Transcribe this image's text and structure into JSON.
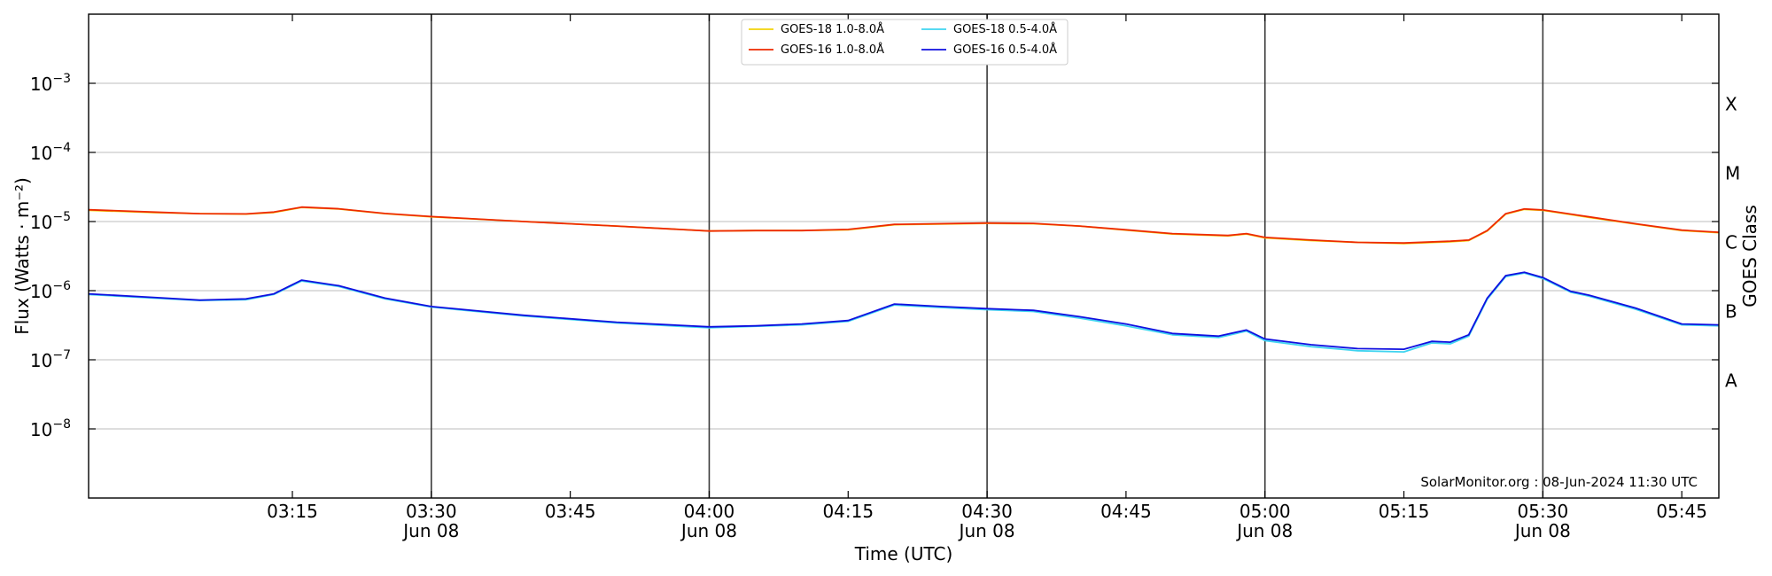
{
  "chart_data": {
    "type": "line",
    "xlabel": "Time (UTC)",
    "ylabel": "Flux (Watts · m⁻²)",
    "y2label": "GOES Class",
    "yscale": "log",
    "ylim": [
      1e-09,
      0.01
    ],
    "xlim": [
      "02:53",
      "05:49"
    ],
    "grid": "horizontal at decades; vertical lines every 30 min",
    "legend_position": "top-center",
    "annotation": "SolarMonitor.org : 08-Jun-2024 11:30 UTC",
    "x_ticks": [
      {
        "time": "03:15",
        "label": "03:15",
        "sublabel": ""
      },
      {
        "time": "03:30",
        "label": "03:30",
        "sublabel": "Jun 08"
      },
      {
        "time": "03:45",
        "label": "03:45",
        "sublabel": ""
      },
      {
        "time": "04:00",
        "label": "04:00",
        "sublabel": "Jun 08"
      },
      {
        "time": "04:15",
        "label": "04:15",
        "sublabel": ""
      },
      {
        "time": "04:30",
        "label": "04:30",
        "sublabel": "Jun 08"
      },
      {
        "time": "04:45",
        "label": "04:45",
        "sublabel": ""
      },
      {
        "time": "05:00",
        "label": "05:00",
        "sublabel": "Jun 08"
      },
      {
        "time": "05:15",
        "label": "05:15",
        "sublabel": ""
      },
      {
        "time": "05:30",
        "label": "05:30",
        "sublabel": "Jun 08"
      },
      {
        "time": "05:45",
        "label": "05:45",
        "sublabel": ""
      }
    ],
    "y_ticks": [
      {
        "value": 1e-08,
        "base": "10",
        "exp": "−8"
      },
      {
        "value": 1e-07,
        "base": "10",
        "exp": "−7"
      },
      {
        "value": 1e-06,
        "base": "10",
        "exp": "−6"
      },
      {
        "value": 1e-05,
        "base": "10",
        "exp": "−5"
      },
      {
        "value": 0.0001,
        "base": "10",
        "exp": "−4"
      },
      {
        "value": 0.001,
        "base": "10",
        "exp": "−3"
      }
    ],
    "goes_classes": [
      {
        "label": "A",
        "value": 5e-08
      },
      {
        "label": "B",
        "value": 5e-07
      },
      {
        "label": "C",
        "value": 5e-06
      },
      {
        "label": "M",
        "value": 5e-05
      },
      {
        "label": "X",
        "value": 0.0005
      }
    ],
    "legend_entries": [
      {
        "name": "GOES-18 1.0-8.0Å",
        "color": "#f2d20a"
      },
      {
        "name": "GOES-16 1.0-8.0Å",
        "color": "#ee2a00"
      },
      {
        "name": "GOES-18 0.5-4.0Å",
        "color": "#3fd4f0"
      },
      {
        "name": "GOES-16 0.5-4.0Å",
        "color": "#1010e0"
      }
    ],
    "series": [
      {
        "name": "GOES-18 1.0-8.0Å",
        "color": "#f2d20a",
        "points": [
          [
            "02:53",
            1.45e-05
          ],
          [
            "03:00",
            1.35e-05
          ],
          [
            "03:05",
            1.3e-05
          ],
          [
            "03:10",
            1.28e-05
          ],
          [
            "03:13",
            1.35e-05
          ],
          [
            "03:16",
            1.6e-05
          ],
          [
            "03:20",
            1.52e-05
          ],
          [
            "03:25",
            1.3e-05
          ],
          [
            "03:30",
            1.17e-05
          ],
          [
            "03:40",
            1e-05
          ],
          [
            "03:50",
            8.6e-06
          ],
          [
            "04:00",
            7.3e-06
          ],
          [
            "04:05",
            7.4e-06
          ],
          [
            "04:10",
            7.4e-06
          ],
          [
            "04:15",
            7.6e-06
          ],
          [
            "04:20",
            9e-06
          ],
          [
            "04:30",
            9.4e-06
          ],
          [
            "04:35",
            9.3e-06
          ],
          [
            "04:40",
            8.6e-06
          ],
          [
            "04:45",
            7.5e-06
          ],
          [
            "04:50",
            6.6e-06
          ],
          [
            "04:56",
            6.2e-06
          ],
          [
            "04:58",
            6.6e-06
          ],
          [
            "05:00",
            5.8e-06
          ],
          [
            "05:05",
            5.3e-06
          ],
          [
            "05:10",
            5e-06
          ],
          [
            "05:15",
            4.8e-06
          ],
          [
            "05:20",
            5.1e-06
          ],
          [
            "05:22",
            5.3e-06
          ],
          [
            "05:24",
            7.3e-06
          ],
          [
            "05:26",
            1.28e-05
          ],
          [
            "05:28",
            1.5e-05
          ],
          [
            "05:30",
            1.45e-05
          ],
          [
            "05:35",
            1.15e-05
          ],
          [
            "05:40",
            9.2e-06
          ],
          [
            "05:45",
            7.4e-06
          ],
          [
            "05:49",
            6.9e-06
          ]
        ]
      },
      {
        "name": "GOES-16 1.0-8.0Å",
        "color": "#ee2a00",
        "points": [
          [
            "02:53",
            1.48e-05
          ],
          [
            "03:00",
            1.37e-05
          ],
          [
            "03:05",
            1.3e-05
          ],
          [
            "03:10",
            1.29e-05
          ],
          [
            "03:13",
            1.37e-05
          ],
          [
            "03:16",
            1.62e-05
          ],
          [
            "03:20",
            1.53e-05
          ],
          [
            "03:25",
            1.31e-05
          ],
          [
            "03:30",
            1.18e-05
          ],
          [
            "03:40",
            1e-05
          ],
          [
            "03:50",
            8.6e-06
          ],
          [
            "04:00",
            7.3e-06
          ],
          [
            "04:05",
            7.4e-06
          ],
          [
            "04:10",
            7.4e-06
          ],
          [
            "04:15",
            7.7e-06
          ],
          [
            "04:20",
            9.1e-06
          ],
          [
            "04:30",
            9.5e-06
          ],
          [
            "04:35",
            9.4e-06
          ],
          [
            "04:40",
            8.6e-06
          ],
          [
            "04:45",
            7.6e-06
          ],
          [
            "04:50",
            6.7e-06
          ],
          [
            "04:56",
            6.3e-06
          ],
          [
            "04:58",
            6.7e-06
          ],
          [
            "05:00",
            5.9e-06
          ],
          [
            "05:05",
            5.4e-06
          ],
          [
            "05:10",
            5e-06
          ],
          [
            "05:15",
            4.9e-06
          ],
          [
            "05:20",
            5.2e-06
          ],
          [
            "05:22",
            5.4e-06
          ],
          [
            "05:24",
            7.4e-06
          ],
          [
            "05:26",
            1.3e-05
          ],
          [
            "05:28",
            1.52e-05
          ],
          [
            "05:30",
            1.47e-05
          ],
          [
            "05:35",
            1.17e-05
          ],
          [
            "05:40",
            9.3e-06
          ],
          [
            "05:45",
            7.5e-06
          ],
          [
            "05:49",
            7e-06
          ]
        ]
      },
      {
        "name": "GOES-18 0.5-4.0Å",
        "color": "#3fd4f0",
        "points": [
          [
            "02:53",
            8.8e-07
          ],
          [
            "03:00",
            7.8e-07
          ],
          [
            "03:05",
            7.2e-07
          ],
          [
            "03:10",
            7.4e-07
          ],
          [
            "03:13",
            8.8e-07
          ],
          [
            "03:16",
            1.38e-06
          ],
          [
            "03:20",
            1.15e-06
          ],
          [
            "03:25",
            7.6e-07
          ],
          [
            "03:30",
            5.8e-07
          ],
          [
            "03:40",
            4.3e-07
          ],
          [
            "03:50",
            3.4e-07
          ],
          [
            "04:00",
            2.9e-07
          ],
          [
            "04:05",
            3.05e-07
          ],
          [
            "04:10",
            3.2e-07
          ],
          [
            "04:15",
            3.6e-07
          ],
          [
            "04:20",
            6.2e-07
          ],
          [
            "04:25",
            5.7e-07
          ],
          [
            "04:30",
            5.3e-07
          ],
          [
            "04:35",
            5e-07
          ],
          [
            "04:40",
            4e-07
          ],
          [
            "04:45",
            3.1e-07
          ],
          [
            "04:50",
            2.3e-07
          ],
          [
            "04:55",
            2.1e-07
          ],
          [
            "04:58",
            2.6e-07
          ],
          [
            "05:00",
            1.9e-07
          ],
          [
            "05:05",
            1.55e-07
          ],
          [
            "05:10",
            1.35e-07
          ],
          [
            "05:15",
            1.3e-07
          ],
          [
            "05:18",
            1.75e-07
          ],
          [
            "05:20",
            1.7e-07
          ],
          [
            "05:22",
            2.2e-07
          ],
          [
            "05:24",
            7.5e-07
          ],
          [
            "05:26",
            1.6e-06
          ],
          [
            "05:28",
            1.8e-06
          ],
          [
            "05:30",
            1.5e-06
          ],
          [
            "05:33",
            9.5e-07
          ],
          [
            "05:35",
            8.3e-07
          ],
          [
            "05:40",
            5.4e-07
          ],
          [
            "05:45",
            3.2e-07
          ],
          [
            "05:49",
            3.1e-07
          ]
        ]
      },
      {
        "name": "GOES-16 0.5-4.0Å",
        "color": "#1010e0",
        "points": [
          [
            "02:53",
            9e-07
          ],
          [
            "03:00",
            8e-07
          ],
          [
            "03:05",
            7.3e-07
          ],
          [
            "03:10",
            7.6e-07
          ],
          [
            "03:13",
            9e-07
          ],
          [
            "03:16",
            1.42e-06
          ],
          [
            "03:20",
            1.18e-06
          ],
          [
            "03:25",
            7.8e-07
          ],
          [
            "03:30",
            5.9e-07
          ],
          [
            "03:40",
            4.4e-07
          ],
          [
            "03:50",
            3.5e-07
          ],
          [
            "04:00",
            3e-07
          ],
          [
            "04:05",
            3.1e-07
          ],
          [
            "04:10",
            3.3e-07
          ],
          [
            "04:15",
            3.7e-07
          ],
          [
            "04:20",
            6.4e-07
          ],
          [
            "04:25",
            5.9e-07
          ],
          [
            "04:30",
            5.5e-07
          ],
          [
            "04:35",
            5.2e-07
          ],
          [
            "04:40",
            4.2e-07
          ],
          [
            "04:45",
            3.3e-07
          ],
          [
            "04:50",
            2.4e-07
          ],
          [
            "04:55",
            2.2e-07
          ],
          [
            "04:58",
            2.7e-07
          ],
          [
            "05:00",
            2e-07
          ],
          [
            "05:05",
            1.65e-07
          ],
          [
            "05:10",
            1.45e-07
          ],
          [
            "05:15",
            1.42e-07
          ],
          [
            "05:18",
            1.85e-07
          ],
          [
            "05:20",
            1.8e-07
          ],
          [
            "05:22",
            2.3e-07
          ],
          [
            "05:24",
            7.8e-07
          ],
          [
            "05:26",
            1.65e-06
          ],
          [
            "05:28",
            1.85e-06
          ],
          [
            "05:30",
            1.55e-06
          ],
          [
            "05:33",
            9.8e-07
          ],
          [
            "05:35",
            8.6e-07
          ],
          [
            "05:40",
            5.6e-07
          ],
          [
            "05:45",
            3.3e-07
          ],
          [
            "05:49",
            3.2e-07
          ]
        ]
      }
    ]
  }
}
